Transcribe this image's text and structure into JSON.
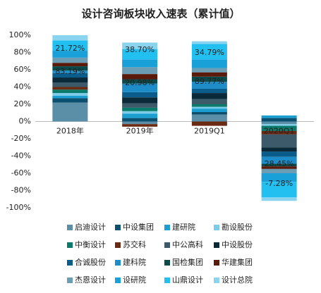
{
  "chart_data": {
    "type": "bar",
    "stacked": true,
    "title": "设计咨询板块收入速表（累计值）",
    "categories": [
      "2018年",
      "2019年",
      "2019Q1",
      "2020Q1"
    ],
    "ylim": [
      -100,
      100
    ],
    "yticks": [
      {
        "value": -100,
        "label": "-100%"
      },
      {
        "value": -80,
        "label": "-80%"
      },
      {
        "value": -60,
        "label": "-60%"
      },
      {
        "value": -40,
        "label": "-40%"
      },
      {
        "value": -20,
        "label": "-20%"
      },
      {
        "value": 0,
        "label": "0%"
      },
      {
        "value": 20,
        "label": "20%"
      },
      {
        "value": 40,
        "label": "40%"
      },
      {
        "value": 60,
        "label": "60%"
      },
      {
        "value": 80,
        "label": "80%"
      },
      {
        "value": 100,
        "label": "100%"
      }
    ],
    "annotations": [
      [
        "21.72%",
        "83.19%"
      ],
      [
        "38.70%",
        "20.98%"
      ],
      [
        "34.79%",
        "89.77%"
      ],
      [
        "28.45%",
        "-7.28%"
      ]
    ],
    "series": [
      {
        "name": "启迪设计",
        "color": "#5b8fa8",
        "values": [
          22,
          -3,
          8,
          -3
        ]
      },
      {
        "name": "中设集团",
        "color": "#0d4f6e",
        "values": [
          5,
          4,
          3,
          4
        ]
      },
      {
        "name": "建研院",
        "color": "#1a9fd0",
        "values": [
          3,
          5,
          4,
          3
        ]
      },
      {
        "name": "勘设股份",
        "color": "#7ccbe8",
        "values": [
          3,
          3,
          2,
          -2
        ]
      },
      {
        "name": "中衡设计",
        "color": "#0a7a6a",
        "values": [
          4,
          4,
          3,
          -6
        ]
      },
      {
        "name": "苏交科",
        "color": "#6b2a12",
        "values": [
          3,
          -3,
          -5,
          -4
        ]
      },
      {
        "name": "中公高科",
        "color": "#3d5a6b",
        "values": [
          5,
          5,
          6,
          -15
        ]
      },
      {
        "name": "中设股份",
        "color": "#0a2a3a",
        "values": [
          6,
          7,
          7,
          -5
        ]
      },
      {
        "name": "合诚股份",
        "color": "#0a5c8a",
        "values": [
          5,
          6,
          5,
          -6
        ]
      },
      {
        "name": "建科院",
        "color": "#1e8cc8",
        "values": [
          3,
          10,
          8,
          -8
        ]
      },
      {
        "name": "国检集团",
        "color": "#0a4a4a",
        "values": [
          5,
          5,
          6,
          -3
        ]
      },
      {
        "name": "华建集团",
        "color": "#5a1a0a",
        "values": [
          4,
          6,
          5,
          -3
        ]
      },
      {
        "name": "杰恩设计",
        "color": "#6b9db5",
        "values": [
          6,
          8,
          5,
          -5
        ]
      },
      {
        "name": "设研院",
        "color": "#1aa0d8",
        "values": [
          8,
          9,
          10,
          -10
        ]
      },
      {
        "name": "山鼎设计",
        "color": "#22c0f0",
        "values": [
          12,
          12,
          18,
          -18
        ]
      },
      {
        "name": "设计总院",
        "color": "#8ad4f0",
        "values": [
          6,
          7.5,
          3,
          -4
        ]
      }
    ]
  }
}
